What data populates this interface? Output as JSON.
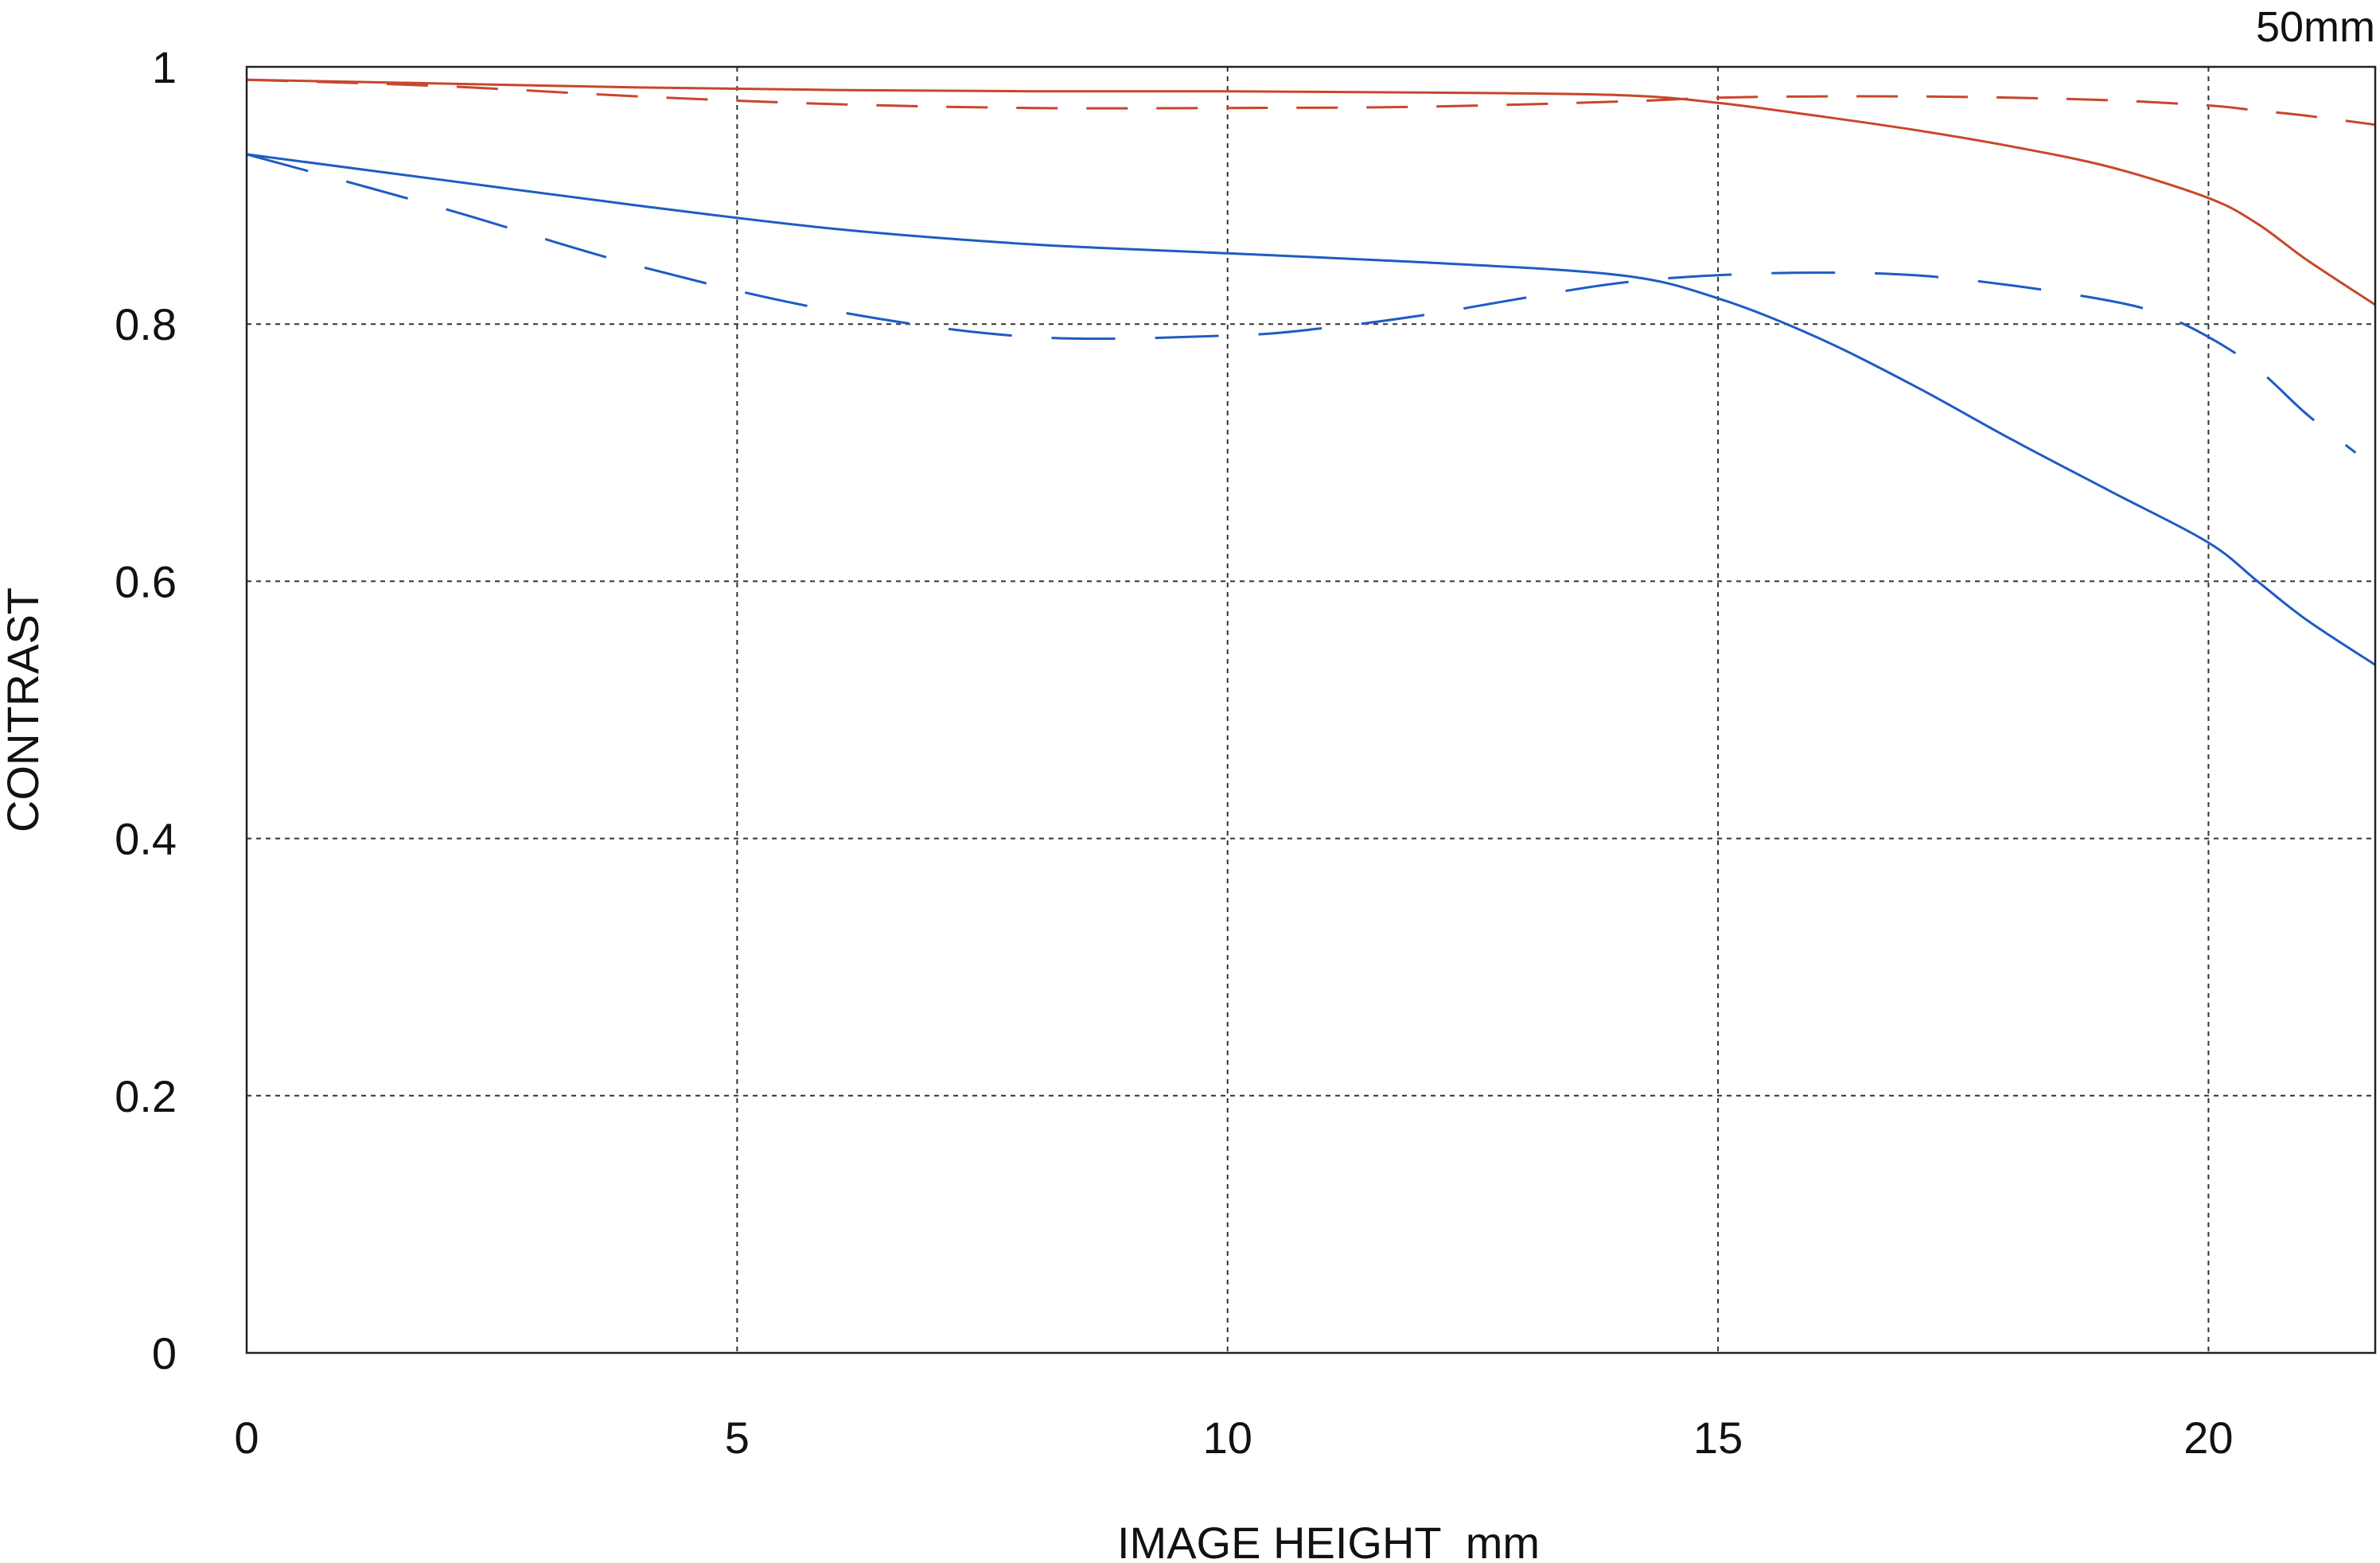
{
  "chart_data": {
    "type": "line",
    "title": "",
    "corner_label": "50mm",
    "xlabel": "IMAGE HEIGHT  mm",
    "ylabel": "CONTRAST",
    "xlim": [
      0,
      21.7
    ],
    "ylim": [
      0,
      1
    ],
    "x_ticks": [
      0,
      5,
      10,
      15,
      20
    ],
    "x_tick_labels": [
      "0",
      "5",
      "10",
      "15",
      "20"
    ],
    "y_ticks": [
      0,
      0.2,
      0.4,
      0.6,
      0.8,
      1
    ],
    "y_tick_labels": [
      "0",
      "0.2",
      "0.4",
      "0.6",
      "0.8",
      "1"
    ],
    "grid": true,
    "legend": "none",
    "series": [
      {
        "color": "#c8472b",
        "style": "solid",
        "x": [
          0,
          2,
          4,
          6,
          8,
          10,
          12,
          14,
          15,
          16,
          17,
          18,
          19,
          20,
          20.5,
          21,
          21.7
        ],
        "y": [
          0.99,
          0.987,
          0.984,
          0.982,
          0.981,
          0.981,
          0.98,
          0.978,
          0.972,
          0.962,
          0.951,
          0.938,
          0.922,
          0.898,
          0.878,
          0.85,
          0.815
        ]
      },
      {
        "color": "#c8472b",
        "style": "dashed",
        "x": [
          0,
          2,
          4,
          6,
          8,
          10,
          12,
          14,
          15,
          16,
          17,
          18,
          19,
          20,
          20.5,
          21,
          21.7
        ],
        "y": [
          0.99,
          0.985,
          0.977,
          0.971,
          0.968,
          0.968,
          0.969,
          0.973,
          0.976,
          0.977,
          0.977,
          0.976,
          0.974,
          0.97,
          0.966,
          0.962,
          0.955
        ]
      },
      {
        "color": "#1f5bc4",
        "style": "solid",
        "x": [
          0,
          2,
          4,
          6,
          8,
          10,
          12,
          14,
          15,
          16,
          17,
          18,
          19,
          20,
          20.5,
          21,
          21.7
        ],
        "y": [
          0.932,
          0.912,
          0.892,
          0.874,
          0.862,
          0.855,
          0.848,
          0.838,
          0.82,
          0.79,
          0.752,
          0.71,
          0.67,
          0.63,
          0.6,
          0.57,
          0.535
        ]
      },
      {
        "color": "#1f5bc4",
        "style": "dashed",
        "x": [
          0,
          2,
          4,
          6,
          8,
          10,
          11,
          12,
          13,
          14,
          15,
          16,
          17,
          18,
          19,
          19.5,
          20,
          20.5,
          21,
          21.5
        ],
        "y": [
          0.932,
          0.89,
          0.845,
          0.81,
          0.79,
          0.791,
          0.797,
          0.807,
          0.82,
          0.832,
          0.838,
          0.84,
          0.838,
          0.83,
          0.818,
          0.808,
          0.79,
          0.765,
          0.73,
          0.7
        ]
      }
    ]
  }
}
